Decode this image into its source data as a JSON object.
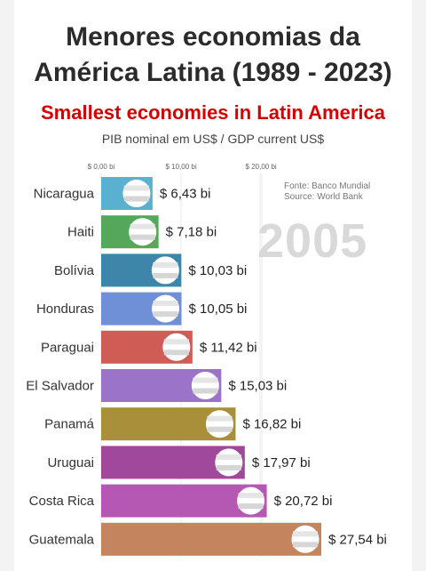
{
  "header": {
    "title_line1": "Menores economias da",
    "title_line2": "América Latina (1989 - 2023)",
    "subtitle": "Smallest economies in Latin America",
    "unit": "PIB nominal em US$ / GDP current US$"
  },
  "source": {
    "line1": "Fonte: Banco Mundial",
    "line2": "Source: World Bank"
  },
  "year": "2005",
  "colors": {
    "Nicaragua": "#5ab0cf",
    "Haiti": "#55a759",
    "Bolívia": "#3e86a9",
    "Honduras": "#6f8fd6",
    "Paraguai": "#cf5d55",
    "El Salvador": "#9b73c8",
    "Panamá": "#a98f3a",
    "Uruguai": "#a0499c",
    "Costa Rica": "#b458b3",
    "Guatemala": "#c4855e"
  },
  "chart_data": {
    "type": "bar",
    "orientation": "horizontal",
    "categories": [
      "Nicaragua",
      "Haiti",
      "Bolívia",
      "Honduras",
      "Paraguai",
      "El Salvador",
      "Panamá",
      "Uruguai",
      "Costa Rica",
      "Guatemala"
    ],
    "values": [
      6.43,
      7.18,
      10.03,
      10.05,
      11.42,
      15.03,
      16.82,
      17.97,
      20.72,
      27.54
    ],
    "value_labels": [
      "$ 6,43 bi",
      "$ 7,18 bi",
      "$ 10,03 bi",
      "$ 10,05 bi",
      "$ 11,42 bi",
      "$ 15,03 bi",
      "$ 16,82 bi",
      "$ 17,97 bi",
      "$ 20,72 bi",
      "$ 27,54 bi"
    ],
    "x_ticks": [
      0,
      10,
      20
    ],
    "x_tick_labels": [
      "$ 0,00 bi",
      "$ 10,00 bi",
      "$ 20,00 bi"
    ],
    "xlim": [
      0,
      27.54
    ]
  }
}
